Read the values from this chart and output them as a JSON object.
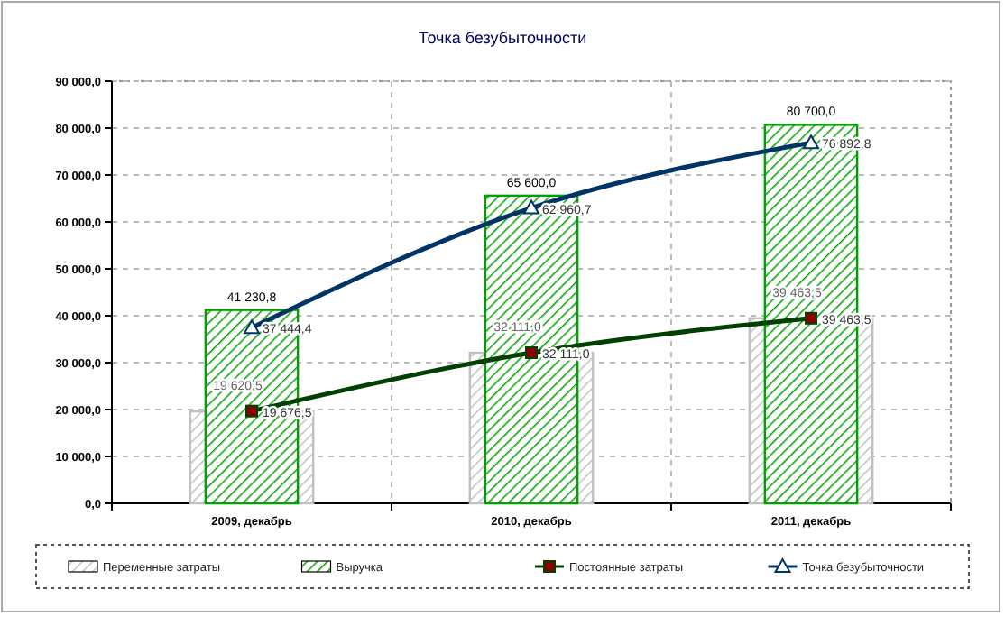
{
  "chart_data": {
    "type": "bar",
    "title": "Точка безубыточности",
    "categories": [
      "2009, декабрь",
      "2010, декабрь",
      "2011, декабрь"
    ],
    "ylim": [
      0,
      90000
    ],
    "yticks": [
      {
        "value": 0,
        "label": "0,0"
      },
      {
        "value": 10000,
        "label": "10 000,0"
      },
      {
        "value": 20000,
        "label": "20 000,0"
      },
      {
        "value": 30000,
        "label": "30 000,0"
      },
      {
        "value": 40000,
        "label": "40 000,0"
      },
      {
        "value": 50000,
        "label": "50 000,0"
      },
      {
        "value": 60000,
        "label": "60 000,0"
      },
      {
        "value": 70000,
        "label": "70 000,0"
      },
      {
        "value": 80000,
        "label": "80 000,0"
      },
      {
        "value": 90000,
        "label": "90 000,0"
      }
    ],
    "grid": true,
    "legend": "bottom",
    "series": [
      {
        "name": "Переменные затраты",
        "color": "#c0c0c0",
        "values": [
          19620.5,
          32111.0,
          39463.5
        ],
        "value_labels": [
          "19 620,5",
          "32 111,0",
          "39 463,5"
        ]
      },
      {
        "name": "Выручка",
        "color": "#00a000",
        "values": [
          41230.8,
          65600.0,
          80700.0
        ],
        "value_labels": [
          "41 230,8",
          "65 600,0",
          "80 700,0"
        ]
      },
      {
        "name": "Постоянные затраты",
        "type": "line",
        "color": "#004000",
        "marker": "square",
        "values": [
          19676.5,
          32111.0,
          39463.5
        ],
        "value_labels": [
          "19 676,5",
          "32 111,0",
          "39 463,5"
        ]
      },
      {
        "name": "Точка безубыточности",
        "type": "line",
        "color": "#003366",
        "marker": "triangle",
        "values": [
          37444.4,
          62960.7,
          76892.8
        ],
        "value_labels": [
          "37 444,4",
          "62 960,7",
          "76 892,8"
        ]
      }
    ]
  }
}
